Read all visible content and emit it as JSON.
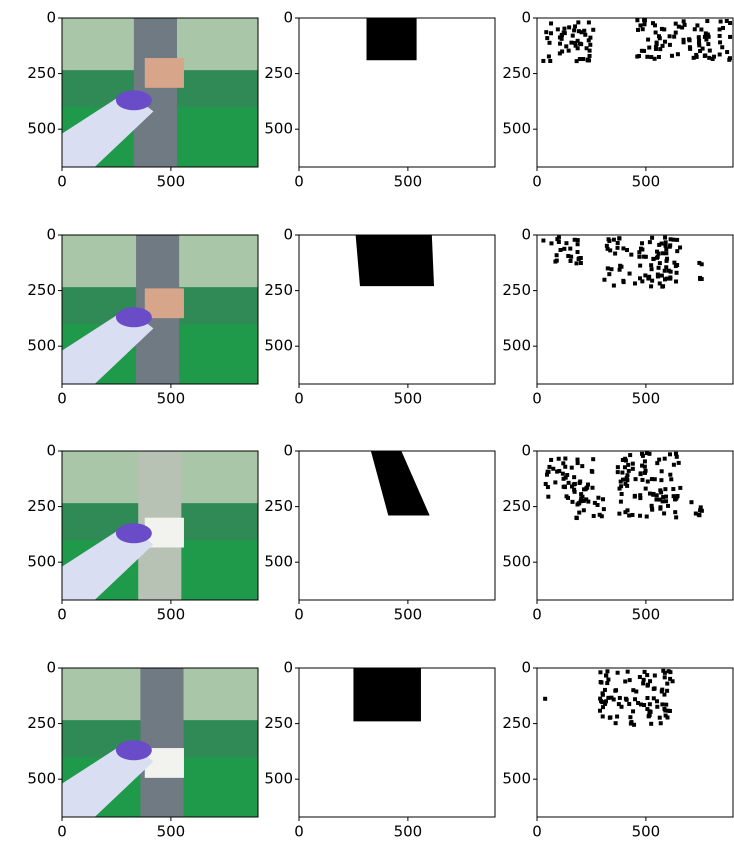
{
  "chart_data": [
    {
      "type": "image",
      "xlim": [
        0,
        900
      ],
      "ylim": [
        670,
        0
      ],
      "xticks": [
        0,
        500
      ],
      "yticks": [
        0,
        250,
        500
      ]
    },
    {
      "type": "image",
      "xlim": [
        0,
        900
      ],
      "ylim": [
        670,
        0
      ],
      "xticks": [
        0,
        500
      ],
      "yticks": [
        0,
        250,
        500
      ]
    },
    {
      "type": "image",
      "xlim": [
        0,
        900
      ],
      "ylim": [
        670,
        0
      ],
      "xticks": [
        0,
        500
      ],
      "yticks": [
        0,
        250,
        500
      ]
    },
    {
      "type": "image",
      "xlim": [
        0,
        900
      ],
      "ylim": [
        670,
        0
      ],
      "xticks": [
        0,
        500
      ],
      "yticks": [
        0,
        250,
        500
      ]
    },
    {
      "type": "image",
      "xlim": [
        0,
        900
      ],
      "ylim": [
        670,
        0
      ],
      "xticks": [
        0,
        500
      ],
      "yticks": [
        0,
        250,
        500
      ]
    },
    {
      "type": "image",
      "xlim": [
        0,
        900
      ],
      "ylim": [
        670,
        0
      ],
      "xticks": [
        0,
        500
      ],
      "yticks": [
        0,
        250,
        500
      ]
    },
    {
      "type": "image",
      "xlim": [
        0,
        900
      ],
      "ylim": [
        670,
        0
      ],
      "xticks": [
        0,
        500
      ],
      "yticks": [
        0,
        250,
        500
      ]
    },
    {
      "type": "image",
      "xlim": [
        0,
        900
      ],
      "ylim": [
        670,
        0
      ],
      "xticks": [
        0,
        500
      ],
      "yticks": [
        0,
        250,
        500
      ]
    },
    {
      "type": "image",
      "xlim": [
        0,
        900
      ],
      "ylim": [
        670,
        0
      ],
      "xticks": [
        0,
        500
      ],
      "yticks": [
        0,
        250,
        500
      ]
    },
    {
      "type": "image",
      "xlim": [
        0,
        900
      ],
      "ylim": [
        670,
        0
      ],
      "xticks": [
        0,
        500
      ],
      "yticks": [
        0,
        250,
        500
      ]
    },
    {
      "type": "image",
      "xlim": [
        0,
        900
      ],
      "ylim": [
        670,
        0
      ],
      "xticks": [
        0,
        500
      ],
      "yticks": [
        0,
        250,
        500
      ]
    },
    {
      "type": "image",
      "xlim": [
        0,
        900
      ],
      "ylim": [
        670,
        0
      ],
      "xticks": [
        0,
        500
      ],
      "yticks": [
        0,
        250,
        500
      ]
    }
  ]
}
